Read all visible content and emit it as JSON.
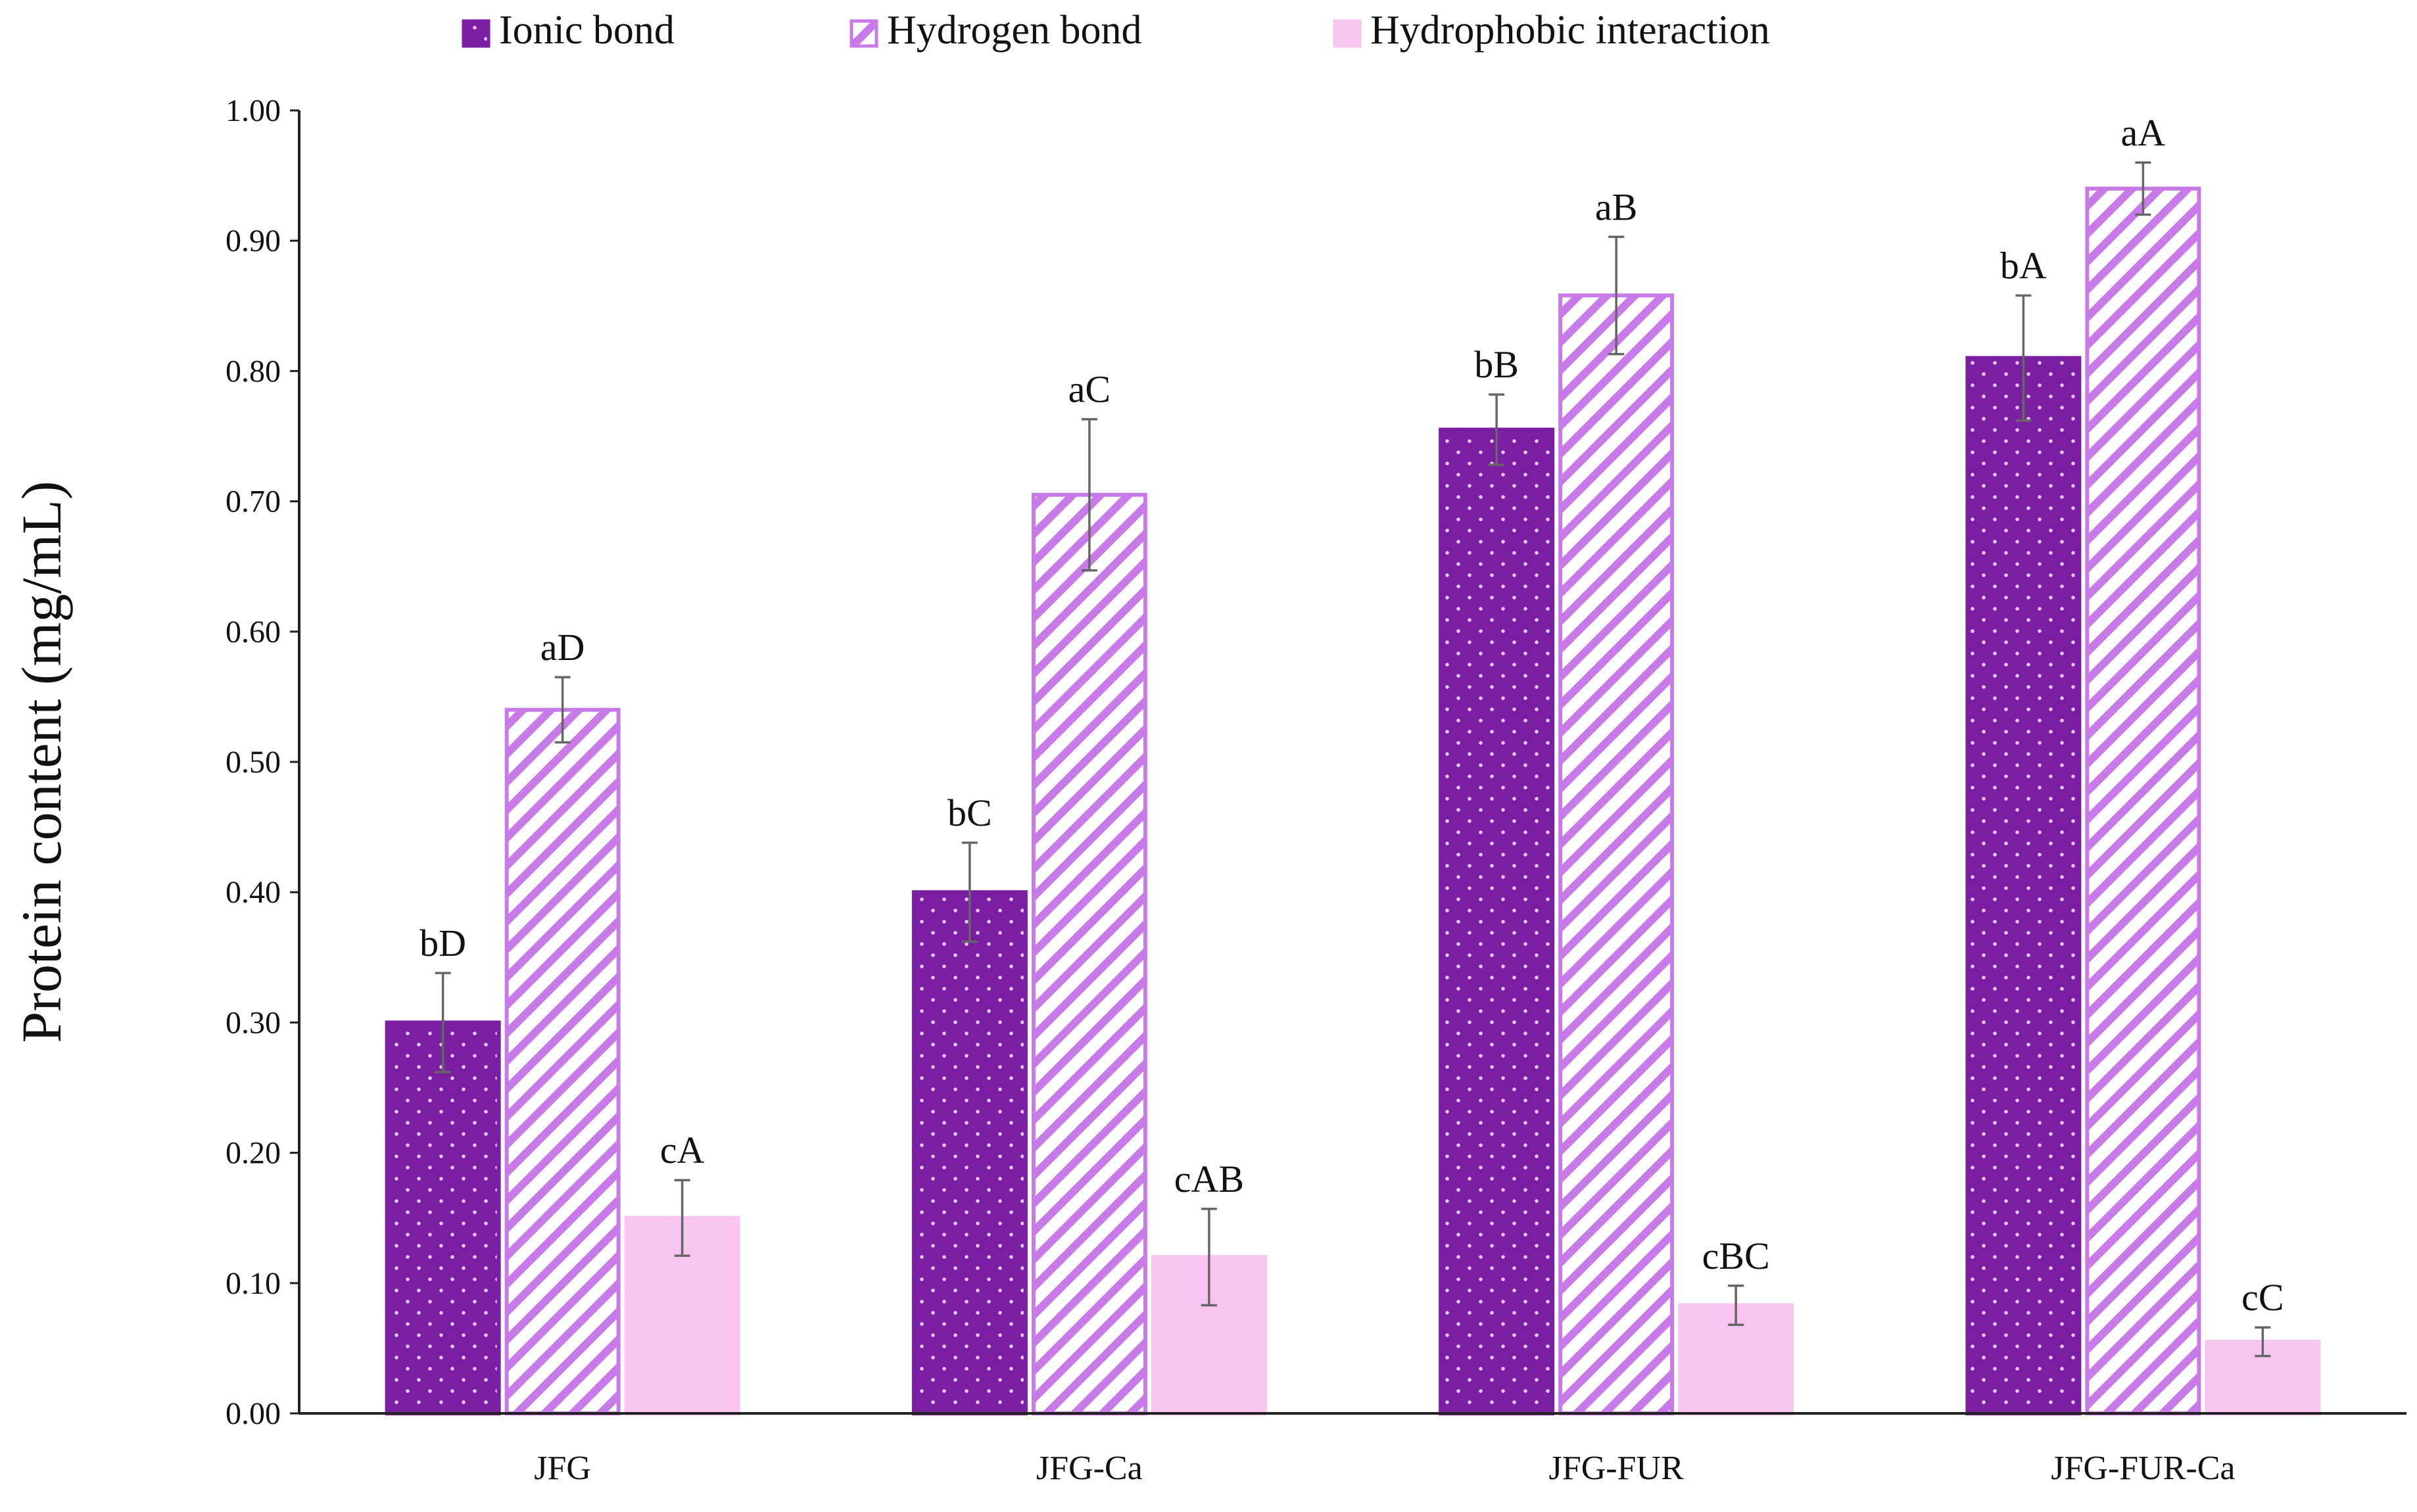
{
  "chart_data": {
    "type": "bar",
    "title": "",
    "xlabel": "",
    "ylabel": "Protein content (mg/mL)",
    "ylim": [
      0,
      1.0
    ],
    "yticks": [
      "0.00",
      "0.10",
      "0.20",
      "0.30",
      "0.40",
      "0.50",
      "0.60",
      "0.70",
      "0.80",
      "0.90",
      "1.00"
    ],
    "legend_position": "top",
    "categories": [
      "JFG",
      "JFG-Ca",
      "JFG-FUR",
      "JFG-FUR-Ca"
    ],
    "series": [
      {
        "name": "Ionic bond",
        "color": "#7a1fa2",
        "pattern": "dots",
        "values": [
          0.3,
          0.4,
          0.755,
          0.81
        ],
        "errors": [
          0.038,
          0.038,
          0.027,
          0.048
        ],
        "labels": [
          "bD",
          "bC",
          "bB",
          "bA"
        ]
      },
      {
        "name": "Hydrogen bond",
        "color": "#c77ae8",
        "pattern": "hatch",
        "values": [
          0.54,
          0.705,
          0.858,
          0.94
        ],
        "errors": [
          0.025,
          0.058,
          0.045,
          0.02
        ],
        "labels": [
          "aD",
          "aC",
          "aB",
          "aA"
        ]
      },
      {
        "name": "Hydrophobic interaction",
        "color": "#f7c5f0",
        "pattern": "solid",
        "values": [
          0.15,
          0.12,
          0.083,
          0.055
        ],
        "errors": [
          0.029,
          0.037,
          0.015,
          0.011
        ],
        "labels": [
          "cA",
          "cAB",
          "cBC",
          "cC"
        ]
      }
    ]
  }
}
